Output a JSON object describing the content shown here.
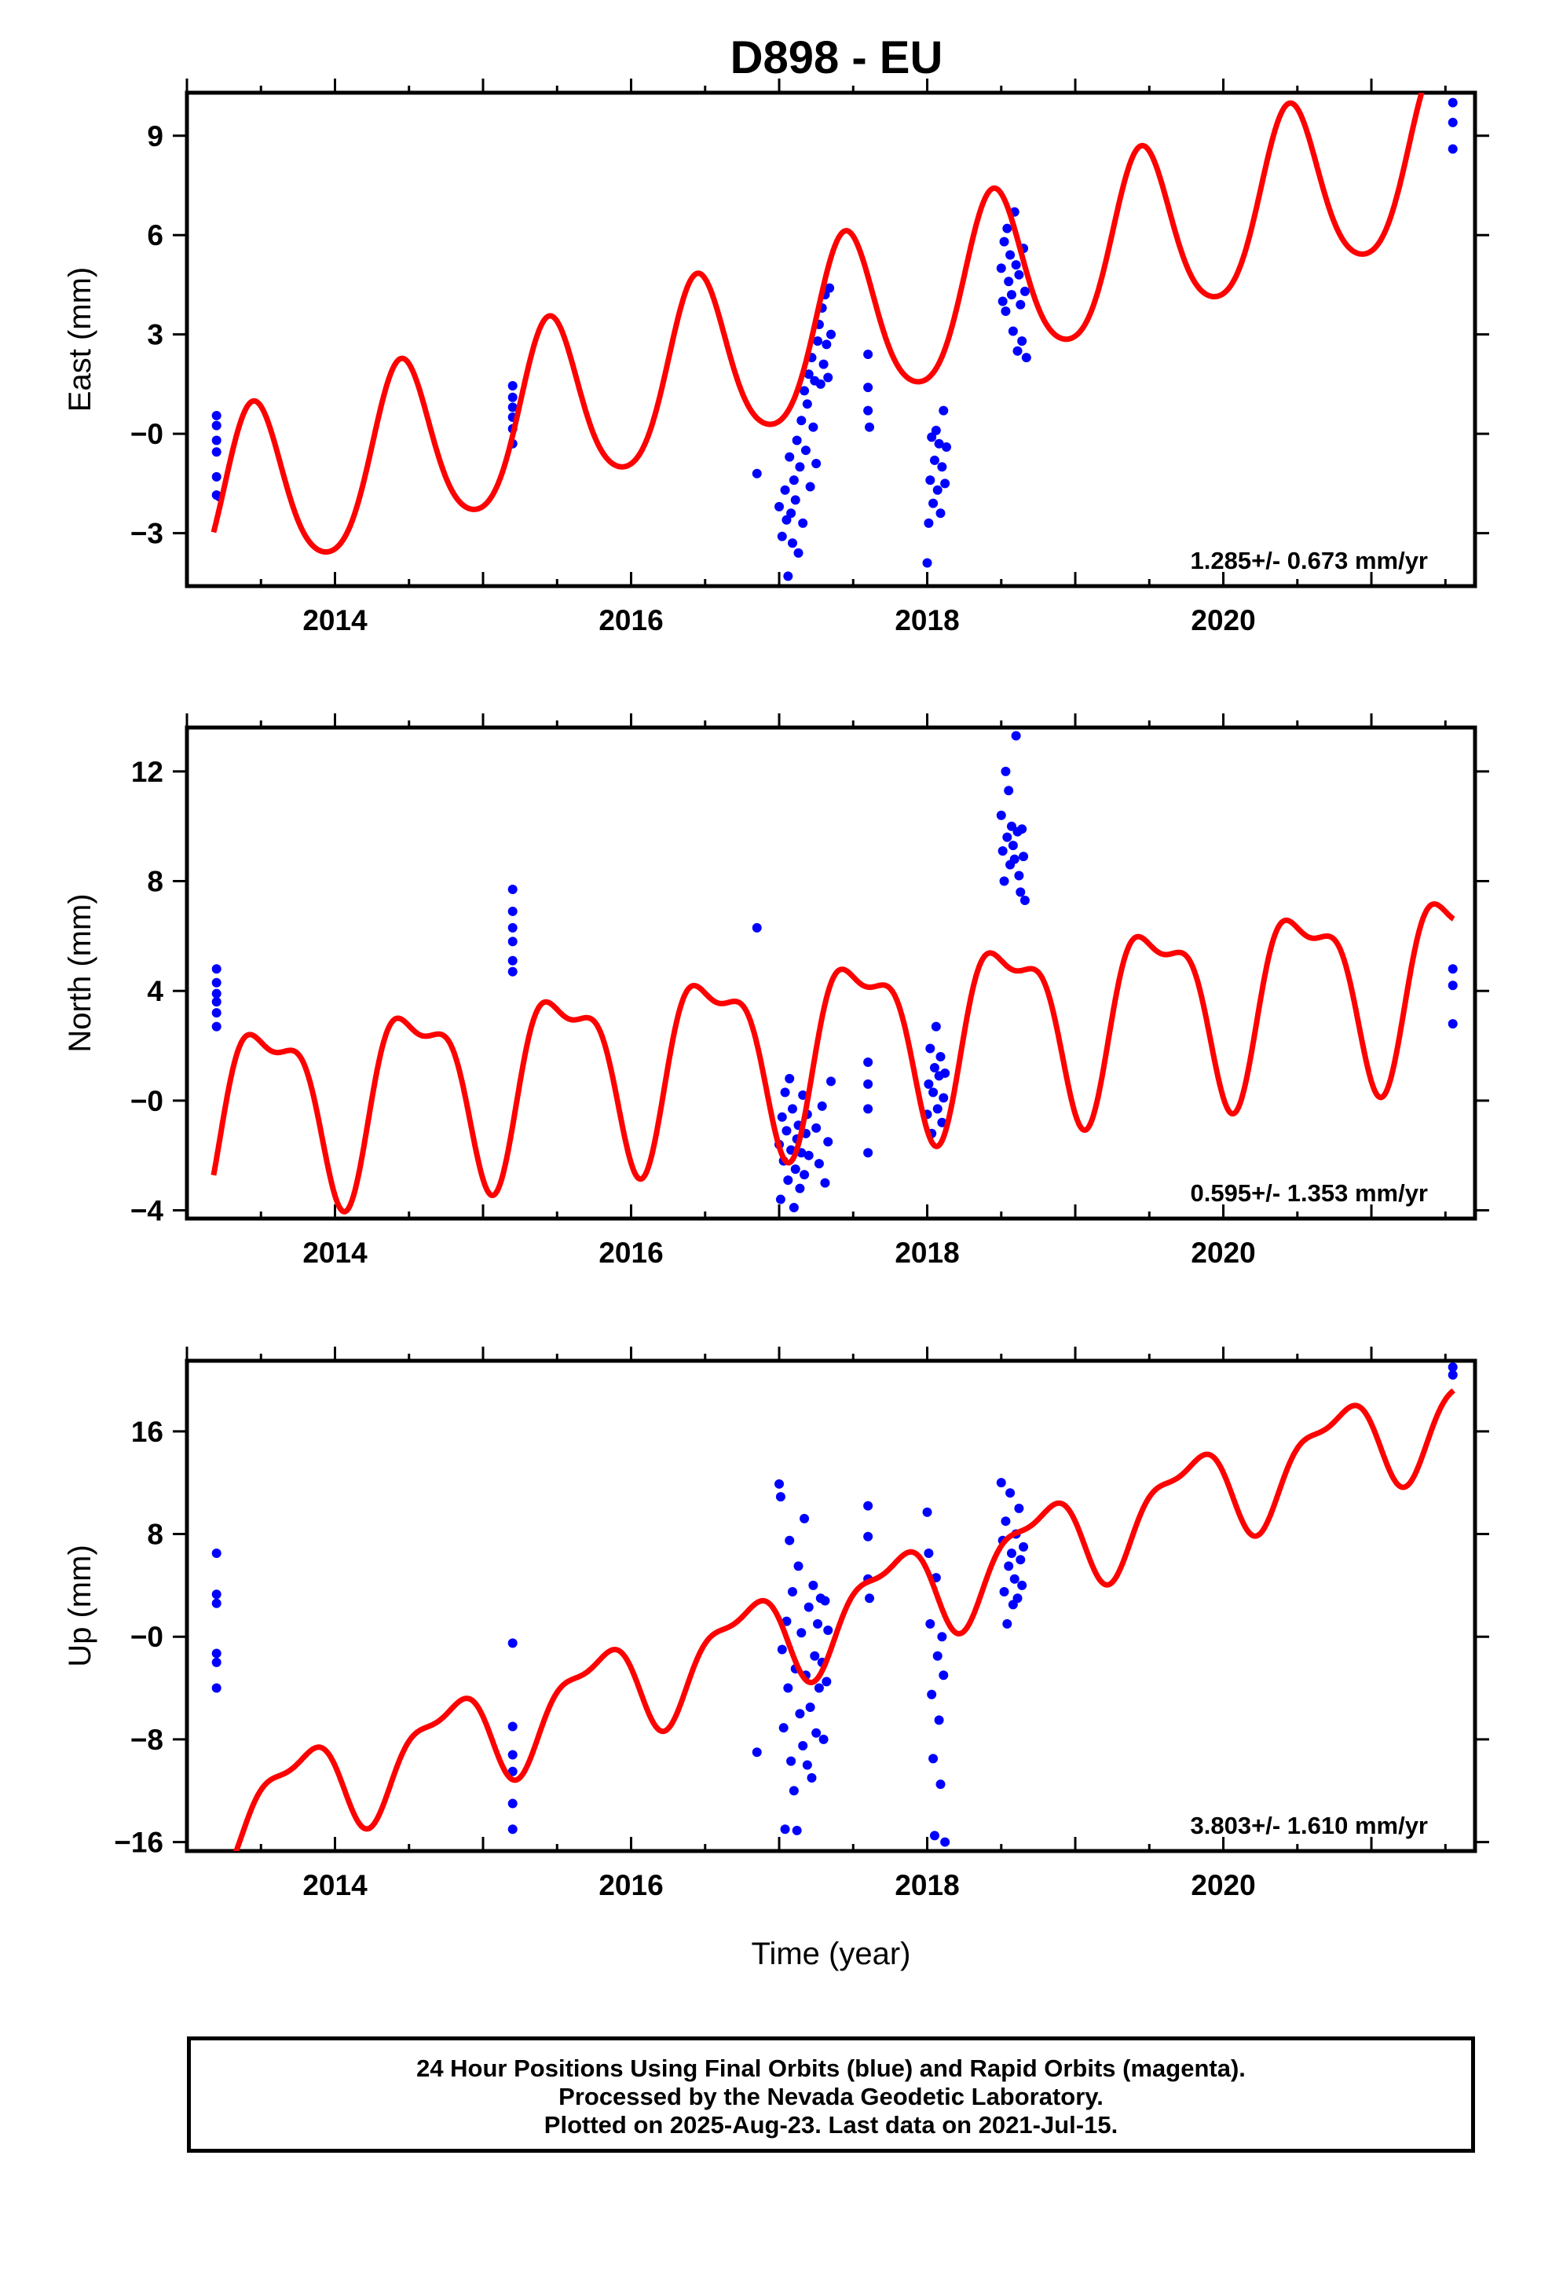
{
  "title": "D898 - EU",
  "colors": {
    "fit": "#ff0000",
    "final_orbits": "#0000ff",
    "frame": "#000000"
  },
  "x_axis": {
    "label": "Time (year)",
    "range": [
      2013.0,
      2021.7
    ],
    "major_ticks": [
      2014,
      2016,
      2018,
      2020
    ]
  },
  "chart_data": [
    {
      "type": "scatter",
      "component": "East",
      "ylabel": "East (mm)",
      "ylim": [
        -4.6,
        10.3
      ],
      "yticks": [
        -3,
        0,
        3,
        6,
        9
      ],
      "ytick_labels": [
        "−3",
        "−0",
        "3",
        "6",
        "9"
      ],
      "rate_text": "1.285+/- 0.673 mm/yr",
      "fit": {
        "rate": 1.285,
        "t0": 2013.18,
        "y0": -2.3,
        "annual_amp": 2.6,
        "annual_peak": 2017.45,
        "semiannual_amp": 0.35,
        "semiannual_phase": 0.8
      },
      "series": [
        {
          "points": [
            [
              2013.2,
              0.55
            ],
            [
              2013.2,
              0.25
            ],
            [
              2013.2,
              -0.2
            ],
            [
              2013.2,
              -0.55
            ],
            [
              2013.2,
              -1.3
            ],
            [
              2013.2,
              -1.85
            ],
            [
              2013.22,
              -1.9
            ],
            [
              2015.2,
              1.45
            ],
            [
              2015.2,
              1.1
            ],
            [
              2015.2,
              0.8
            ],
            [
              2015.2,
              0.5
            ],
            [
              2015.2,
              0.15
            ],
            [
              2015.2,
              -0.3
            ],
            [
              2016.85,
              -1.2
            ],
            [
              2017.0,
              -2.2
            ],
            [
              2017.02,
              -3.1
            ],
            [
              2017.04,
              -1.7
            ],
            [
              2017.05,
              -2.6
            ],
            [
              2017.06,
              -4.3
            ],
            [
              2017.07,
              -0.7
            ],
            [
              2017.08,
              -2.4
            ],
            [
              2017.09,
              -3.3
            ],
            [
              2017.1,
              -1.4
            ],
            [
              2017.11,
              -2.0
            ],
            [
              2017.12,
              -0.2
            ],
            [
              2017.13,
              -3.6
            ],
            [
              2017.14,
              -1.0
            ],
            [
              2017.15,
              0.4
            ],
            [
              2017.16,
              -2.7
            ],
            [
              2017.17,
              1.3
            ],
            [
              2017.18,
              -0.5
            ],
            [
              2017.19,
              0.9
            ],
            [
              2017.2,
              1.8
            ],
            [
              2017.21,
              -1.6
            ],
            [
              2017.22,
              2.3
            ],
            [
              2017.23,
              0.2
            ],
            [
              2017.24,
              1.6
            ],
            [
              2017.25,
              -0.9
            ],
            [
              2017.26,
              2.8
            ],
            [
              2017.27,
              3.3
            ],
            [
              2017.28,
              1.5
            ],
            [
              2017.29,
              3.8
            ],
            [
              2017.3,
              2.1
            ],
            [
              2017.31,
              4.2
            ],
            [
              2017.32,
              2.7
            ],
            [
              2017.33,
              1.7
            ],
            [
              2017.34,
              4.4
            ],
            [
              2017.35,
              3.0
            ],
            [
              2017.6,
              2.4
            ],
            [
              2017.6,
              1.4
            ],
            [
              2017.6,
              0.7
            ],
            [
              2017.61,
              0.2
            ],
            [
              2018.0,
              -3.9
            ],
            [
              2018.01,
              -2.7
            ],
            [
              2018.02,
              -1.4
            ],
            [
              2018.03,
              -0.1
            ],
            [
              2018.04,
              -2.1
            ],
            [
              2018.05,
              -0.8
            ],
            [
              2018.06,
              0.1
            ],
            [
              2018.07,
              -1.7
            ],
            [
              2018.08,
              -0.3
            ],
            [
              2018.09,
              -2.4
            ],
            [
              2018.1,
              -1.0
            ],
            [
              2018.11,
              0.7
            ],
            [
              2018.12,
              -1.5
            ],
            [
              2018.13,
              -0.4
            ],
            [
              2018.5,
              5.0
            ],
            [
              2018.51,
              4.0
            ],
            [
              2018.52,
              5.8
            ],
            [
              2018.53,
              3.7
            ],
            [
              2018.54,
              6.2
            ],
            [
              2018.55,
              4.6
            ],
            [
              2018.56,
              5.4
            ],
            [
              2018.57,
              4.2
            ],
            [
              2018.58,
              3.1
            ],
            [
              2018.59,
              6.7
            ],
            [
              2018.6,
              5.1
            ],
            [
              2018.61,
              2.5
            ],
            [
              2018.62,
              4.8
            ],
            [
              2018.63,
              3.9
            ],
            [
              2018.64,
              2.8
            ],
            [
              2018.65,
              5.6
            ],
            [
              2018.66,
              4.3
            ],
            [
              2018.67,
              2.3
            ],
            [
              2021.55,
              10.0
            ],
            [
              2021.55,
              9.4
            ],
            [
              2021.55,
              8.6
            ]
          ]
        }
      ]
    },
    {
      "type": "scatter",
      "component": "North",
      "ylabel": "North (mm)",
      "ylim": [
        -4.3,
        13.6
      ],
      "yticks": [
        -4,
        0,
        4,
        8,
        12
      ],
      "ytick_labels": [
        "−4",
        "−0",
        "4",
        "8",
        "12"
      ],
      "rate_text": "0.595+/- 1.353 mm/yr",
      "fit": {
        "rate": 0.595,
        "t0": 2013.18,
        "y0": -0.3,
        "annual_amp": 3.1,
        "annual_peak": 2013.55,
        "semiannual_amp": 1.2,
        "semiannual_phase": 2.2
      },
      "series": [
        {
          "points": [
            [
              2013.2,
              4.8
            ],
            [
              2013.2,
              4.3
            ],
            [
              2013.2,
              3.9
            ],
            [
              2013.2,
              3.6
            ],
            [
              2013.2,
              3.2
            ],
            [
              2013.2,
              2.7
            ],
            [
              2015.2,
              7.7
            ],
            [
              2015.2,
              6.9
            ],
            [
              2015.2,
              6.3
            ],
            [
              2015.2,
              5.8
            ],
            [
              2015.2,
              5.1
            ],
            [
              2015.2,
              4.7
            ],
            [
              2016.85,
              6.3
            ],
            [
              2017.0,
              -1.6
            ],
            [
              2017.01,
              -3.6
            ],
            [
              2017.02,
              -0.6
            ],
            [
              2017.03,
              -2.2
            ],
            [
              2017.04,
              0.3
            ],
            [
              2017.05,
              -1.1
            ],
            [
              2017.06,
              -2.9
            ],
            [
              2017.07,
              0.8
            ],
            [
              2017.08,
              -1.8
            ],
            [
              2017.09,
              -0.3
            ],
            [
              2017.1,
              -3.9
            ],
            [
              2017.11,
              -2.5
            ],
            [
              2017.12,
              -1.4
            ],
            [
              2017.13,
              -0.9
            ],
            [
              2017.14,
              -3.2
            ],
            [
              2017.15,
              -1.9
            ],
            [
              2017.16,
              0.2
            ],
            [
              2017.17,
              -2.7
            ],
            [
              2017.18,
              -1.2
            ],
            [
              2017.19,
              -0.5
            ],
            [
              2017.2,
              -2.0
            ],
            [
              2017.25,
              -1.0
            ],
            [
              2017.27,
              -2.3
            ],
            [
              2017.29,
              -0.2
            ],
            [
              2017.31,
              -3.0
            ],
            [
              2017.33,
              -1.5
            ],
            [
              2017.35,
              0.7
            ],
            [
              2017.6,
              1.4
            ],
            [
              2017.6,
              0.6
            ],
            [
              2017.6,
              -0.3
            ],
            [
              2017.6,
              -1.9
            ],
            [
              2018.0,
              -0.5
            ],
            [
              2018.01,
              0.6
            ],
            [
              2018.02,
              1.9
            ],
            [
              2018.03,
              -1.2
            ],
            [
              2018.04,
              0.3
            ],
            [
              2018.05,
              1.2
            ],
            [
              2018.06,
              2.7
            ],
            [
              2018.07,
              -0.3
            ],
            [
              2018.08,
              0.9
            ],
            [
              2018.09,
              1.6
            ],
            [
              2018.1,
              -0.8
            ],
            [
              2018.11,
              0.1
            ],
            [
              2018.12,
              1.0
            ],
            [
              2018.5,
              10.4
            ],
            [
              2018.51,
              9.1
            ],
            [
              2018.52,
              8.0
            ],
            [
              2018.53,
              12.0
            ],
            [
              2018.54,
              9.6
            ],
            [
              2018.55,
              11.3
            ],
            [
              2018.56,
              8.6
            ],
            [
              2018.57,
              10.0
            ],
            [
              2018.58,
              9.3
            ],
            [
              2018.59,
              8.8
            ],
            [
              2018.6,
              13.3
            ],
            [
              2018.61,
              9.8
            ],
            [
              2018.62,
              8.2
            ],
            [
              2018.63,
              7.6
            ],
            [
              2018.64,
              9.9
            ],
            [
              2018.65,
              8.9
            ],
            [
              2018.66,
              7.3
            ],
            [
              2021.55,
              4.8
            ],
            [
              2021.55,
              4.2
            ],
            [
              2021.55,
              2.8
            ]
          ]
        }
      ]
    },
    {
      "type": "scatter",
      "component": "Up",
      "ylabel": "Up (mm)",
      "ylim": [
        -16.7,
        21.5
      ],
      "yticks": [
        -16,
        -8,
        0,
        8,
        16
      ],
      "ytick_labels": [
        "−16",
        "−8",
        "−0",
        "8",
        "16"
      ],
      "rate_text": "3.803+/- 1.610 mm/yr",
      "fit": {
        "rate": 3.803,
        "t0": 2013.18,
        "y0": -14.3,
        "annual_amp": 3.4,
        "annual_peak": 2013.75,
        "semiannual_amp": 1.3,
        "semiannual_phase": 0.5
      },
      "series": [
        {
          "points": [
            [
              2013.2,
              6.5
            ],
            [
              2013.2,
              3.3
            ],
            [
              2013.2,
              2.6
            ],
            [
              2013.2,
              -1.3
            ],
            [
              2013.2,
              -2.0
            ],
            [
              2013.2,
              -4.0
            ],
            [
              2015.2,
              -0.5
            ],
            [
              2015.2,
              -7.0
            ],
            [
              2015.2,
              -9.2
            ],
            [
              2015.2,
              -10.5
            ],
            [
              2015.2,
              -13.0
            ],
            [
              2015.2,
              -15.0
            ],
            [
              2016.85,
              -9.0
            ],
            [
              2017.0,
              11.9
            ],
            [
              2017.01,
              10.9
            ],
            [
              2017.02,
              -1.0
            ],
            [
              2017.03,
              -7.1
            ],
            [
              2017.04,
              -15.0
            ],
            [
              2017.05,
              1.2
            ],
            [
              2017.06,
              -4.0
            ],
            [
              2017.07,
              7.5
            ],
            [
              2017.08,
              -9.7
            ],
            [
              2017.09,
              3.5
            ],
            [
              2017.1,
              -12.0
            ],
            [
              2017.11,
              -2.5
            ],
            [
              2017.12,
              -15.1
            ],
            [
              2017.13,
              5.5
            ],
            [
              2017.14,
              -6.0
            ],
            [
              2017.15,
              0.3
            ],
            [
              2017.16,
              -8.5
            ],
            [
              2017.17,
              9.2
            ],
            [
              2017.18,
              -3.0
            ],
            [
              2017.19,
              -10.0
            ],
            [
              2017.2,
              2.3
            ],
            [
              2017.21,
              -5.5
            ],
            [
              2017.22,
              -11.0
            ],
            [
              2017.23,
              4.0
            ],
            [
              2017.24,
              -1.5
            ],
            [
              2017.25,
              -7.5
            ],
            [
              2017.26,
              1.0
            ],
            [
              2017.27,
              -4.0
            ],
            [
              2017.28,
              3.0
            ],
            [
              2017.29,
              -2.0
            ],
            [
              2017.3,
              -8.0
            ],
            [
              2017.31,
              2.8
            ],
            [
              2017.32,
              -3.5
            ],
            [
              2017.33,
              0.5
            ],
            [
              2017.6,
              10.2
            ],
            [
              2017.6,
              7.8
            ],
            [
              2017.6,
              4.5
            ],
            [
              2017.61,
              3.0
            ],
            [
              2018.0,
              9.7
            ],
            [
              2018.01,
              6.5
            ],
            [
              2018.02,
              1.0
            ],
            [
              2018.03,
              -4.5
            ],
            [
              2018.04,
              -9.5
            ],
            [
              2018.05,
              -15.5
            ],
            [
              2018.06,
              4.6
            ],
            [
              2018.07,
              -1.5
            ],
            [
              2018.08,
              -6.5
            ],
            [
              2018.09,
              -11.5
            ],
            [
              2018.1,
              0.0
            ],
            [
              2018.11,
              -3.0
            ],
            [
              2018.12,
              -16.0
            ],
            [
              2018.5,
              12.0
            ],
            [
              2018.51,
              7.5
            ],
            [
              2018.52,
              3.5
            ],
            [
              2018.53,
              9.0
            ],
            [
              2018.54,
              1.0
            ],
            [
              2018.55,
              5.5
            ],
            [
              2018.56,
              11.2
            ],
            [
              2018.57,
              6.5
            ],
            [
              2018.58,
              2.5
            ],
            [
              2018.59,
              4.5
            ],
            [
              2018.6,
              8.0
            ],
            [
              2018.61,
              3.0
            ],
            [
              2018.62,
              10.0
            ],
            [
              2018.63,
              6.0
            ],
            [
              2018.64,
              4.0
            ],
            [
              2018.65,
              7.0
            ],
            [
              2021.55,
              21.0
            ],
            [
              2021.55,
              20.4
            ]
          ]
        }
      ]
    }
  ],
  "footer": {
    "line1": "24 Hour Positions Using Final Orbits (blue) and Rapid Orbits (magenta).",
    "line2": "Processed by the Nevada Geodetic Laboratory.",
    "line3": "Plotted on 2025-Aug-23. Last data on 2021-Jul-15."
  }
}
